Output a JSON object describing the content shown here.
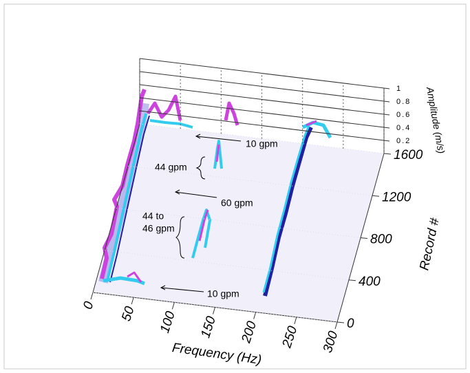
{
  "chart_data": {
    "type": "waterfall",
    "x_label": "Frequency (Hz)",
    "y_label": "Record #",
    "z_label": "Amplitude (m/s)",
    "xlim": [
      0,
      300
    ],
    "xticks": [
      0,
      50,
      100,
      150,
      200,
      250,
      300
    ],
    "ylim": [
      0,
      1600
    ],
    "yticks": [
      0,
      400,
      800,
      1200,
      1600
    ],
    "zlim": [
      0,
      1
    ],
    "zticks": [
      0.2,
      0.4,
      0.6,
      0.8,
      1
    ],
    "annotations": [
      "10 gpm",
      "44 gpm",
      "60 gpm",
      "44 to",
      "46 gpm",
      "10 gpm"
    ]
  }
}
